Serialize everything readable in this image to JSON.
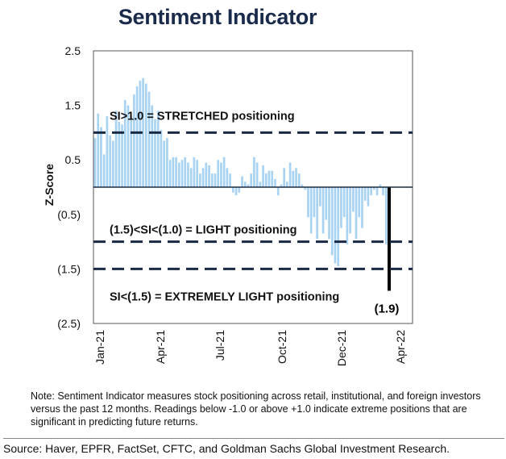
{
  "chart_data": {
    "type": "bar",
    "title": "Sentiment Indicator",
    "ylabel": "Z-Score",
    "ylim": [
      -2.5,
      2.5
    ],
    "yticks": [
      {
        "value": 2.5,
        "label": "2.5"
      },
      {
        "value": 1.5,
        "label": "1.5"
      },
      {
        "value": 0.5,
        "label": "0.5"
      },
      {
        "value": -0.5,
        "label": "(0.5)"
      },
      {
        "value": -1.5,
        "label": "(1.5)"
      },
      {
        "value": -2.5,
        "label": "(2.5)"
      }
    ],
    "xticks": [
      "Jan-21",
      "Apr-21",
      "Jul-21",
      "Oct-21",
      "Dec-21",
      "Apr-22"
    ],
    "values": [
      0.9,
      1.35,
      1.1,
      0.6,
      1.3,
      0.95,
      0.85,
      1.4,
      1.2,
      1.15,
      1.6,
      1.5,
      1.3,
      1.7,
      1.85,
      1.95,
      2.0,
      1.9,
      1.75,
      1.5,
      1.25,
      1.4,
      1.05,
      0.85,
      0.9,
      0.5,
      0.55,
      0.55,
      0.45,
      0.5,
      0.55,
      0.45,
      0.35,
      0.55,
      0.5,
      0.25,
      0.35,
      0.45,
      0.4,
      0.25,
      0.25,
      0.5,
      0.45,
      0.55,
      0.35,
      0.25,
      -0.1,
      -0.15,
      -0.1,
      0.2,
      0.1,
      0.05,
      0.25,
      0.55,
      0.45,
      0.1,
      0.4,
      0.25,
      0.3,
      0.3,
      0.15,
      -0.15,
      0.05,
      0.35,
      0.1,
      0.45,
      0.3,
      0.35,
      0.25,
      0.05,
      -0.05,
      -0.55,
      -0.85,
      -0.55,
      -0.95,
      -0.35,
      -0.85,
      -0.6,
      -0.95,
      -1.25,
      -1.4,
      -1.45,
      -0.75,
      -0.55,
      -1.05,
      -0.85,
      -0.45,
      -0.95,
      -0.55,
      -0.75,
      -0.25,
      -0.35,
      -0.15,
      -0.05,
      -0.15,
      0.05,
      -0.15,
      -1.05,
      -1.9
    ],
    "highlight": {
      "value": -1.9,
      "label": "(1.9)",
      "color": "#000000"
    },
    "bar_color": "#a9d3f3",
    "thresholds": [
      {
        "value": 1.0,
        "label": "SI>1.0 = STRETCHED positioning"
      },
      {
        "value": -1.0,
        "label": "(1.5)<SI<(1.0) = LIGHT positioning"
      },
      {
        "value": -1.5,
        "label": "SI<(1.5) = EXTREMELY LIGHT positioning"
      }
    ],
    "threshold_color": "#1a2a44",
    "grid": false
  },
  "note": "Note: Sentiment Indicator measures stock positioning across retail, institutional, and foreign investors versus the past 12 months. Readings below -1.0 or above +1.0 indicate extreme positions that are significant in predicting future returns.",
  "source": "Source: Haver, EPFR, FactSet, CFTC, and Goldman Sachs Global Investment Research."
}
